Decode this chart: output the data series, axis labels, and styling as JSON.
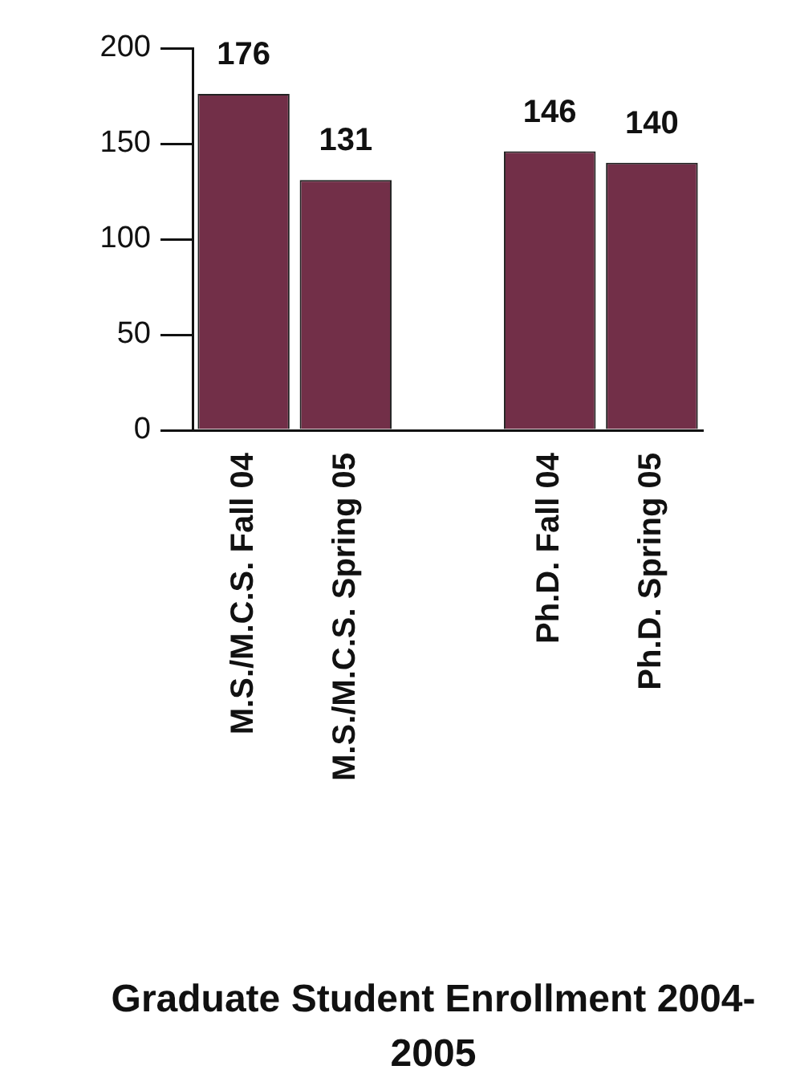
{
  "chart_data": {
    "type": "bar",
    "title": "Graduate Student Enrollment 2004-2005",
    "categories": [
      "M.S./M.C.S. Fall 04",
      "M.S./M.C.S. Spring 05",
      null,
      "Ph.D. Fall 04",
      "Ph.D. Spring 05"
    ],
    "values": [
      176,
      131,
      null,
      146,
      140
    ],
    "color": "#722f48",
    "ylim": [
      0,
      200
    ],
    "yticks": [
      0,
      50,
      100,
      150,
      200
    ],
    "grid": false,
    "data_labels": true
  }
}
